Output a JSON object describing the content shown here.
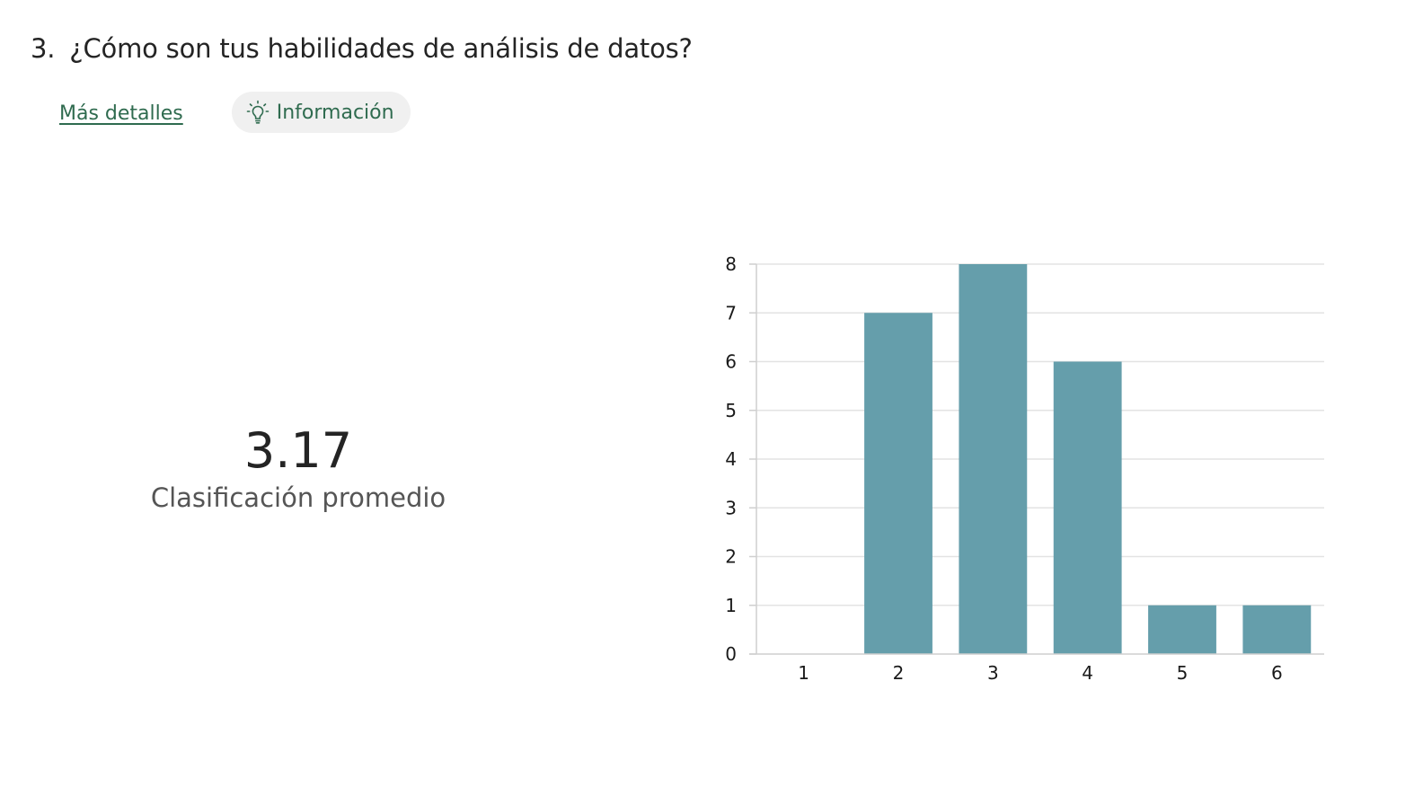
{
  "question": {
    "number": "3.",
    "text": "¿Cómo son tus habilidades de análisis de datos?"
  },
  "links": {
    "more_details": "Más detalles",
    "insights": "Información",
    "insights_icon": "lightbulb-icon"
  },
  "summary": {
    "value": "3.17",
    "caption": "Clasificación promedio"
  },
  "colors": {
    "bar": "#659eab",
    "gridline": "#e3e3e3",
    "axis": "#cfcfcf",
    "link": "#2f6b4f",
    "chip_bg": "#f0f0f0"
  },
  "chart_data": {
    "type": "bar",
    "categories": [
      "1",
      "2",
      "3",
      "4",
      "5",
      "6"
    ],
    "values": [
      0,
      7,
      8,
      6,
      1,
      1
    ],
    "title": "",
    "xlabel": "",
    "ylabel": "",
    "ylim": [
      0,
      8
    ],
    "yticks": [
      "0",
      "1",
      "2",
      "3",
      "4",
      "5",
      "6",
      "7",
      "8"
    ],
    "grid": true,
    "legend": "none"
  }
}
